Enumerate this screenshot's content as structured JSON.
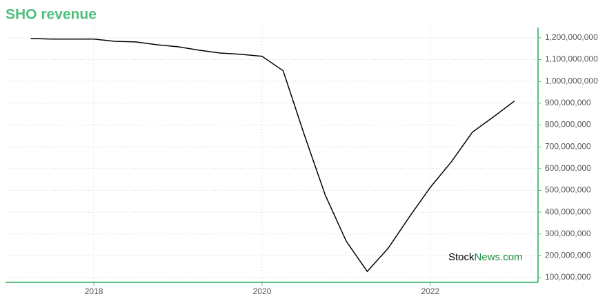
{
  "chart_data": {
    "type": "line",
    "title": "SHO revenue",
    "watermark": {
      "first": "Stock",
      "second": "News.com"
    },
    "x": [
      2017.25,
      2017.5,
      2017.75,
      2018.0,
      2018.25,
      2018.5,
      2018.75,
      2019.0,
      2019.25,
      2019.5,
      2019.75,
      2020.0,
      2020.25,
      2020.5,
      2020.75,
      2021.0,
      2021.25,
      2021.5,
      2021.75,
      2022.0,
      2022.25,
      2022.5,
      2022.75,
      2023.0
    ],
    "series": [
      {
        "name": "Revenue",
        "color": "#000000",
        "values": [
          1197000000,
          1194000000,
          1194000000,
          1194000000,
          1184000000,
          1181000000,
          1168000000,
          1159000000,
          1143000000,
          1130000000,
          1124000000,
          1115000000,
          1049000000,
          757000000,
          479000000,
          267000000,
          128000000,
          235000000,
          378000000,
          514000000,
          631000000,
          767000000,
          837000000,
          910000000
        ]
      }
    ],
    "xlim": [
      2016.95,
      2023.28
    ],
    "xticks": [
      2018,
      2020,
      2022
    ],
    "ylim": [
      78000000,
      1247000000
    ],
    "yticks": [
      {
        "value": 100000000,
        "label": "100,000,000"
      },
      {
        "value": 200000000,
        "label": "200,000,000"
      },
      {
        "value": 300000000,
        "label": "300,000,000"
      },
      {
        "value": 400000000,
        "label": "400,000,000"
      },
      {
        "value": 500000000,
        "label": "500,000,000"
      },
      {
        "value": 600000000,
        "label": "600,000,000"
      },
      {
        "value": 700000000,
        "label": "700,000,000"
      },
      {
        "value": 800000000,
        "label": "800,000,000"
      },
      {
        "value": 900000000,
        "label": "900,000,000"
      },
      {
        "value": 1000000000,
        "label": "1,000,000,000"
      },
      {
        "value": 1100000000,
        "label": "1,100,000,000"
      },
      {
        "value": 1200000000,
        "label": "1,200,000,000"
      }
    ],
    "grid": true,
    "axis_color": "#5cbf82",
    "title_color": "#4fbf7c"
  }
}
